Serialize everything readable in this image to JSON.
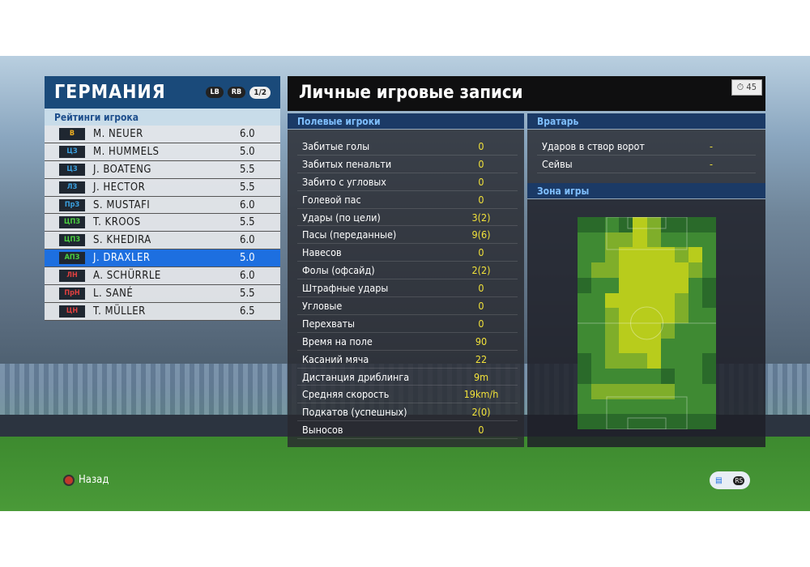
{
  "team": {
    "title": "ГЕРМАНИЯ",
    "lb": "LB",
    "rb": "RB",
    "page": "1/2",
    "ratings_label": "Рейтинги игрока"
  },
  "players": [
    {
      "pos": "В",
      "pos_color": "#f0b020",
      "name": "M. NEUER",
      "rating": "6.0"
    },
    {
      "pos": "ЦЗ",
      "pos_color": "#3aa0e0",
      "name": "M. HUMMELS",
      "rating": "5.0"
    },
    {
      "pos": "ЦЗ",
      "pos_color": "#3aa0e0",
      "name": "J. BOATENG",
      "rating": "5.5"
    },
    {
      "pos": "ЛЗ",
      "pos_color": "#3aa0e0",
      "name": "J. HECTOR",
      "rating": "5.5"
    },
    {
      "pos": "ПрЗ",
      "pos_color": "#3aa0e0",
      "name": "S. MUSTAFI",
      "rating": "6.0"
    },
    {
      "pos": "ЦПЗ",
      "pos_color": "#4cd040",
      "name": "T. KROOS",
      "rating": "5.5"
    },
    {
      "pos": "ЦПЗ",
      "pos_color": "#4cd040",
      "name": "S. KHEDIRA",
      "rating": "6.0"
    },
    {
      "pos": "АПЗ",
      "pos_color": "#4cd040",
      "name": "J. DRAXLER",
      "rating": "5.0",
      "selected": true
    },
    {
      "pos": "ЛН",
      "pos_color": "#e04040",
      "name": "A. SCHÜRRLE",
      "rating": "6.0"
    },
    {
      "pos": "ПрН",
      "pos_color": "#e04040",
      "name": "L. SANÉ",
      "rating": "5.5"
    },
    {
      "pos": "ЦН",
      "pos_color": "#e04040",
      "name": "T. MÜLLER",
      "rating": "6.5"
    }
  ],
  "main": {
    "title": "Личные игровые записи",
    "timer": "45",
    "field_label": "Полевые игроки",
    "gk_label": "Вратарь",
    "zone_label": "Зона игры"
  },
  "field_stats": [
    {
      "label": "Забитые голы",
      "value": "0"
    },
    {
      "label": "Забитых пенальти",
      "value": "0"
    },
    {
      "label": "Забито с угловых",
      "value": "0"
    },
    {
      "label": "Голевой пас",
      "value": "0"
    },
    {
      "label": "Удары (по цели)",
      "value": "3(2)"
    },
    {
      "label": "Пасы (переданные)",
      "value": "9(6)"
    },
    {
      "label": "Навесов",
      "value": "0"
    },
    {
      "label": "Фолы (офсайд)",
      "value": "2(2)"
    },
    {
      "label": "Штрафные удары",
      "value": "0"
    },
    {
      "label": "Угловые",
      "value": "0"
    },
    {
      "label": "Перехваты",
      "value": "0"
    },
    {
      "label": "Время на поле",
      "value": "90"
    },
    {
      "label": "Касаний мяча",
      "value": "22"
    },
    {
      "label": "Дистанция дриблинга",
      "value": "9m"
    },
    {
      "label": "Средняя скорость",
      "value": "19km/h"
    },
    {
      "label": "Подкатов (успешных)",
      "value": "2(0)"
    },
    {
      "label": "Выносов",
      "value": "0"
    }
  ],
  "gk_stats": [
    {
      "label": "Ударов в створ ворот",
      "value": "-"
    },
    {
      "label": "Сейвы",
      "value": "-"
    }
  ],
  "heatmap": [
    [
      0,
      0,
      1,
      0,
      3,
      2,
      0,
      0,
      0,
      0
    ],
    [
      1,
      1,
      2,
      2,
      3,
      2,
      1,
      1,
      1,
      1
    ],
    [
      1,
      1,
      2,
      3,
      3,
      3,
      3,
      2,
      3,
      1
    ],
    [
      1,
      2,
      2,
      3,
      3,
      3,
      3,
      3,
      2,
      1
    ],
    [
      0,
      1,
      1,
      3,
      3,
      3,
      3,
      3,
      1,
      0
    ],
    [
      1,
      1,
      3,
      3,
      3,
      3,
      3,
      2,
      1,
      0
    ],
    [
      1,
      1,
      2,
      3,
      3,
      3,
      3,
      2,
      1,
      1
    ],
    [
      1,
      1,
      2,
      3,
      3,
      3,
      2,
      1,
      1,
      1
    ],
    [
      1,
      1,
      2,
      3,
      3,
      3,
      1,
      1,
      1,
      1
    ],
    [
      0,
      1,
      2,
      2,
      2,
      3,
      1,
      1,
      1,
      0
    ],
    [
      0,
      1,
      1,
      1,
      1,
      1,
      0,
      1,
      1,
      0
    ],
    [
      1,
      2,
      2,
      2,
      2,
      2,
      2,
      1,
      1,
      1
    ],
    [
      1,
      1,
      1,
      1,
      1,
      1,
      1,
      1,
      1,
      1
    ],
    [
      0,
      0,
      0,
      0,
      0,
      0,
      0,
      0,
      0,
      0
    ]
  ],
  "heat_colors": [
    "#2a6a2a",
    "#3f8a33",
    "#7fae2a",
    "#b8cc1c"
  ],
  "footer": {
    "back": "Назад"
  }
}
